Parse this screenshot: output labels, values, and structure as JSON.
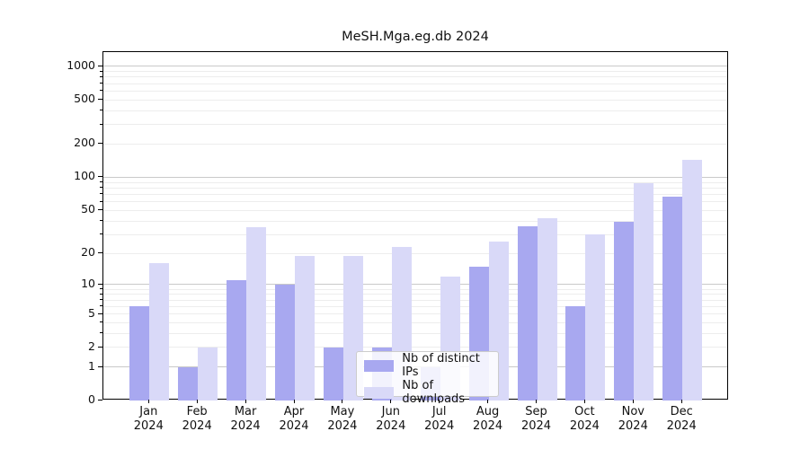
{
  "title": "MeSH.Mga.eg.db 2024",
  "y_axis": {
    "tick_labels": [
      "0",
      "1",
      "2",
      "5",
      "10",
      "20",
      "50",
      "100",
      "200",
      "500",
      "1000"
    ],
    "tick_values": [
      0,
      1,
      2,
      5,
      10,
      20,
      50,
      100,
      200,
      500,
      1000
    ]
  },
  "x_axis": {
    "months": [
      "Jan",
      "Feb",
      "Mar",
      "Apr",
      "May",
      "Jun",
      "Jul",
      "Aug",
      "Sep",
      "Oct",
      "Nov",
      "Dec"
    ],
    "year_label": "2024"
  },
  "legend": {
    "items": [
      "Nb of distinct IPs",
      "Nb of downloads"
    ]
  },
  "colors": {
    "distinct_ips": "#a8a8f0",
    "downloads": "#d9d9f8",
    "major_grid": "#c9c9c9",
    "minor_grid": "#ededed",
    "axis": "#000000",
    "text": "#1a1a1a"
  },
  "chart_data": {
    "type": "bar",
    "title": "MeSH.Mga.eg.db 2024",
    "categories": [
      "Jan 2024",
      "Feb 2024",
      "Mar 2024",
      "Apr 2024",
      "May 2024",
      "Jun 2024",
      "Jul 2024",
      "Aug 2024",
      "Sep 2024",
      "Oct 2024",
      "Nov 2024",
      "Dec 2024"
    ],
    "series": [
      {
        "name": "Nb of distinct IPs",
        "color": "#a8a8f0",
        "values": [
          6,
          1,
          11,
          10,
          2,
          2,
          1,
          15,
          36,
          6,
          39,
          67
        ]
      },
      {
        "name": "Nb of downloads",
        "color": "#d9d9f8",
        "values": [
          16,
          2,
          35,
          19,
          19,
          23,
          12,
          26,
          42,
          30,
          88,
          145
        ]
      }
    ],
    "yscale": "log10(1+y), 0 at baseline",
    "ylim": [
      0,
      1350
    ],
    "y_ticks": [
      0,
      1,
      2,
      5,
      10,
      20,
      50,
      100,
      200,
      500,
      1000
    ],
    "grid": true,
    "legend_position": "lower center"
  }
}
